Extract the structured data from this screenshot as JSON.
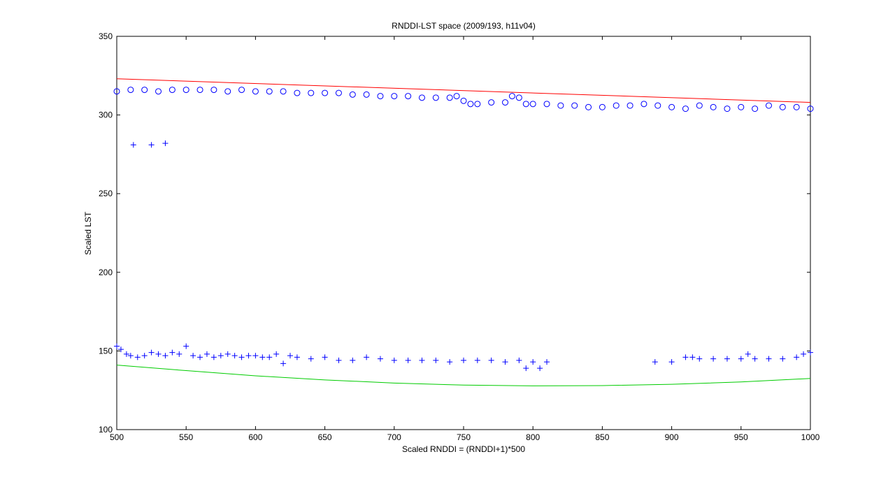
{
  "chart_data": {
    "type": "scatter",
    "title": "RNDDI-LST space (2009/193, h11v04)",
    "xlabel": "Scaled RNDDI = (RNDDI+1)*500",
    "ylabel": "Scaled LST",
    "xlim": [
      500,
      1000
    ],
    "ylim": [
      100,
      350
    ],
    "xticks": [
      500,
      550,
      600,
      650,
      700,
      750,
      800,
      850,
      900,
      950,
      1000
    ],
    "yticks": [
      100,
      150,
      200,
      250,
      300,
      350
    ],
    "grid": false,
    "legend": "none",
    "series": [
      {
        "marker": "circle",
        "color": "#0000ff",
        "x": [
          500,
          510,
          520,
          530,
          540,
          550,
          560,
          570,
          580,
          590,
          600,
          610,
          620,
          630,
          640,
          650,
          660,
          670,
          680,
          690,
          700,
          710,
          720,
          730,
          740,
          745,
          750,
          755,
          760,
          770,
          780,
          785,
          790,
          795,
          800,
          810,
          820,
          830,
          840,
          850,
          860,
          870,
          880,
          890,
          900,
          910,
          920,
          930,
          940,
          950,
          960,
          970,
          980,
          990,
          1000
        ],
        "y": [
          315,
          316,
          316,
          315,
          316,
          316,
          316,
          316,
          315,
          316,
          315,
          315,
          315,
          314,
          314,
          314,
          314,
          313,
          313,
          312,
          312,
          312,
          311,
          311,
          311,
          312,
          309,
          307,
          307,
          308,
          308,
          312,
          311,
          307,
          307,
          307,
          306,
          306,
          305,
          305,
          306,
          306,
          307,
          306,
          305,
          304,
          306,
          305,
          304,
          305,
          304,
          306,
          305,
          305,
          304
        ]
      },
      {
        "marker": "plus",
        "color": "#0000ff",
        "x": [
          512,
          525,
          535,
          500,
          503,
          507,
          510,
          515,
          520,
          525,
          530,
          535,
          540,
          545,
          550,
          555,
          560,
          565,
          570,
          575,
          580,
          585,
          590,
          595,
          600,
          605,
          610,
          615,
          620,
          625,
          630,
          640,
          650,
          660,
          670,
          680,
          690,
          700,
          710,
          720,
          730,
          740,
          750,
          760,
          770,
          780,
          790,
          795,
          800,
          805,
          810,
          888,
          900,
          910,
          915,
          920,
          930,
          940,
          950,
          955,
          960,
          970,
          980,
          990,
          995,
          1000
        ],
        "y": [
          281,
          281,
          282,
          153,
          151,
          148,
          147,
          146,
          147,
          149,
          148,
          147,
          149,
          148,
          153,
          147,
          146,
          148,
          146,
          147,
          148,
          147,
          146,
          147,
          147,
          146,
          146,
          148,
          142,
          147,
          146,
          145,
          146,
          144,
          144,
          146,
          145,
          144,
          144,
          144,
          144,
          143,
          144,
          144,
          144,
          143,
          144,
          139,
          143,
          139,
          143,
          143,
          143,
          146,
          146,
          145,
          145,
          145,
          145,
          148,
          145,
          145,
          145,
          146,
          148,
          149
        ]
      },
      {
        "marker": "line",
        "color": "#ff0000",
        "x": [
          500,
          1000
        ],
        "y": [
          323,
          308
        ]
      },
      {
        "marker": "line",
        "color": "#00cc00",
        "x": [
          500,
          550,
          600,
          650,
          700,
          750,
          800,
          850,
          900,
          950,
          1000
        ],
        "y": [
          141,
          137.5,
          134.2,
          131.6,
          129.6,
          128.3,
          127.8,
          128,
          128.8,
          130.3,
          132.5
        ]
      }
    ]
  }
}
